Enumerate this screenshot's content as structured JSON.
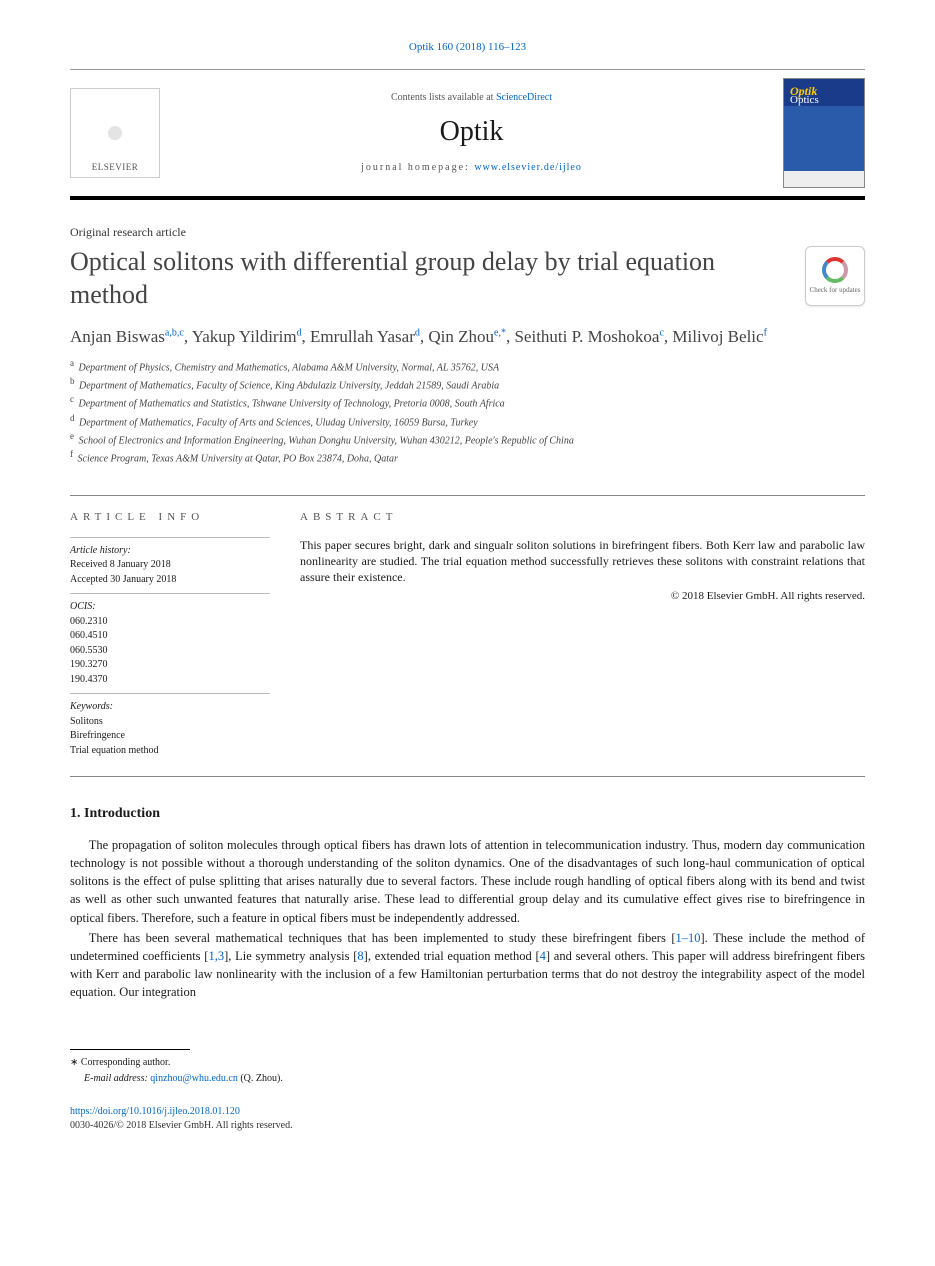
{
  "journal_ref": "Optik 160 (2018) 116–123",
  "header": {
    "contents_prefix": "Contents lists available at ",
    "contents_link": "ScienceDirect",
    "journal_title": "Optik",
    "homepage_prefix": "journal homepage: ",
    "homepage_link": "www.elsevier.de/ijleo",
    "publisher_label": "ELSEVIER"
  },
  "article_type": "Original research article",
  "title": "Optical solitons with differential group delay by trial equation method",
  "updates_badge": "Check for updates",
  "authors": [
    {
      "name": "Anjan Biswas",
      "aff": "a,b,c"
    },
    {
      "name": "Yakup Yildirim",
      "aff": "d"
    },
    {
      "name": "Emrullah Yasar",
      "aff": "d"
    },
    {
      "name": "Qin Zhou",
      "aff": "e,*"
    },
    {
      "name": "Seithuti P. Moshokoa",
      "aff": "c"
    },
    {
      "name": "Milivoj Belic",
      "aff": "f"
    }
  ],
  "affiliations": [
    {
      "key": "a",
      "text": "Department of Physics, Chemistry and Mathematics, Alabama A&M University, Normal, AL 35762, USA"
    },
    {
      "key": "b",
      "text": "Department of Mathematics, Faculty of Science, King Abdulaziz University, Jeddah 21589, Saudi Arabia"
    },
    {
      "key": "c",
      "text": "Department of Mathematics and Statistics, Tshwane University of Technology, Pretoria 0008, South Africa"
    },
    {
      "key": "d",
      "text": "Department of Mathematics, Faculty of Arts and Sciences, Uludag University, 16059 Bursa, Turkey"
    },
    {
      "key": "e",
      "text": "School of Electronics and Information Engineering, Wuhan Donghu University, Wuhan 430212, People's Republic of China"
    },
    {
      "key": "f",
      "text": "Science Program, Texas A&M University at Qatar, PO Box 23874, Doha, Qatar"
    }
  ],
  "info": {
    "heading": "ARTICLE INFO",
    "history_label": "Article history:",
    "received": "Received 8 January 2018",
    "accepted": "Accepted 30 January 2018",
    "ocis_label": "OCIS:",
    "ocis": [
      "060.2310",
      "060.4510",
      "060.5530",
      "190.3270",
      "190.4370"
    ],
    "keywords_label": "Keywords:",
    "keywords": [
      "Solitons",
      "Birefringence",
      "Trial equation method"
    ]
  },
  "abstract": {
    "heading": "ABSTRACT",
    "text": "This paper secures bright, dark and singualr soliton solutions in birefringent fibers. Both Kerr law and parabolic law nonlinearity are studied. The trial equation method successfully retrieves these solitons with constraint relations that assure their existence.",
    "copyright": "© 2018 Elsevier GmbH. All rights reserved."
  },
  "section1": {
    "heading": "1.  Introduction",
    "para1": "The propagation of soliton molecules through optical fibers has drawn lots of attention in telecommunication industry. Thus, modern day communication technology is not possible without a thorough understanding of the soliton dynamics. One of the disadvantages of such long-haul communication of optical solitons is the effect of pulse splitting that arises naturally due to several factors. These include rough handling of optical fibers along with its bend and twist as well as other such unwanted features that naturally arise. These lead to differential group delay and its cumulative effect gives rise to birefringence in optical fibers. Therefore, such a feature in optical fibers must be independently addressed.",
    "para2_parts": {
      "p0": "There has been several mathematical techniques that has been implemented to study these birefringent fibers [",
      "r1": "1–10",
      "p1": "]. These include the method of undetermined coefficients [",
      "r2": "1,3",
      "p2": "], Lie symmetry analysis [",
      "r3": "8",
      "p3": "], extended trial equation method [",
      "r4": "4",
      "p4": "] and several others. This paper will address birefringent fibers with Kerr and parabolic law nonlinearity with the inclusion of a few Hamiltonian perturbation terms that do not destroy the integrability aspect of the model equation. Our integration"
    }
  },
  "footer": {
    "corr_label": "Corresponding author.",
    "email_label": "E-mail address:",
    "email": "qinzhou@whu.edu.cn",
    "email_suffix": "(Q. Zhou).",
    "doi": "https://doi.org/10.1016/j.ijleo.2018.01.120",
    "issn_line": "0030-4026/© 2018 Elsevier GmbH. All rights reserved."
  },
  "colors": {
    "link": "#0066cc",
    "text": "#1a1a1a",
    "rule": "#000000",
    "muted": "#555555"
  }
}
